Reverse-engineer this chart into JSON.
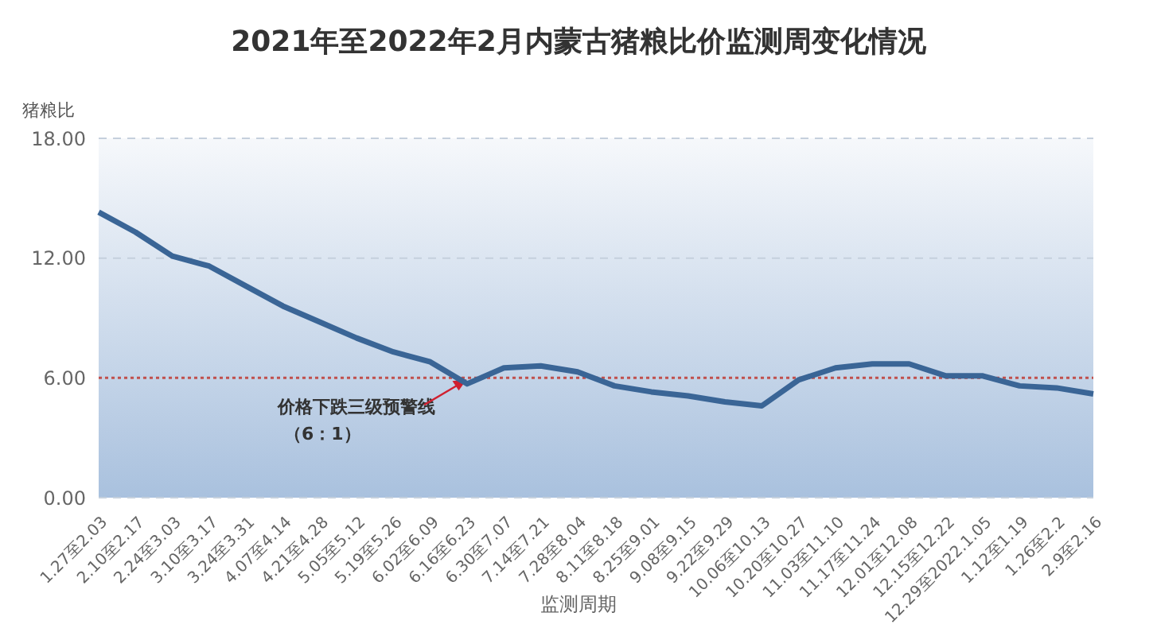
{
  "chart_data": {
    "type": "line",
    "title": "2021年至2022年2月内蒙古猪粮比价监测周变化情况",
    "xlabel": "监测周期",
    "ylabel": "猪粮比",
    "categories": [
      "1.27至2.03",
      "2.10至2.17",
      "2.24至3.03",
      "3.10至3.17",
      "3.24至3.31",
      "4.07至4.14",
      "4.21至4.28",
      "5.05至5.12",
      "5.19至5.26",
      "6.02至6.09",
      "6.16至6.23",
      "6.30至7.07",
      "7.14至7.21",
      "7.28至8.04",
      "8.11至8.18",
      "8.25至9.01",
      "9.08至9.15",
      "9.22至9.29",
      "10.06至10.13",
      "10.20至10.27",
      "11.03至11.10",
      "11.17至11.24",
      "12.01至12.08",
      "12.15至12.22",
      "12.29至2022.1.05",
      "1.12至1.19",
      "1.26至2.2",
      "2.9至2.16"
    ],
    "series": [
      {
        "color": "#3a6596",
        "values": [
          14.3,
          13.3,
          12.1,
          11.6,
          10.6,
          9.6,
          8.8,
          8.0,
          7.3,
          6.8,
          5.7,
          6.5,
          6.6,
          6.3,
          5.6,
          5.3,
          5.1,
          4.8,
          4.6,
          5.9,
          6.5,
          6.7,
          6.7,
          6.1,
          6.1,
          5.6,
          5.5,
          5.2
        ]
      }
    ],
    "ylim": [
      0,
      18
    ],
    "yticks": [
      {
        "value": 0,
        "label": "0.00"
      },
      {
        "value": 6,
        "label": "6.00"
      },
      {
        "value": 12,
        "label": "12.00"
      },
      {
        "value": 18,
        "label": "18.00"
      }
    ],
    "ref_lines": [
      {
        "axis": "y",
        "value": 6,
        "label": "价格下跌三级预警线（6：1）",
        "color": "#c0504d",
        "line_style": "dotted"
      }
    ],
    "grid": "y",
    "legend": false,
    "marker": "none",
    "line_style": "solid"
  }
}
